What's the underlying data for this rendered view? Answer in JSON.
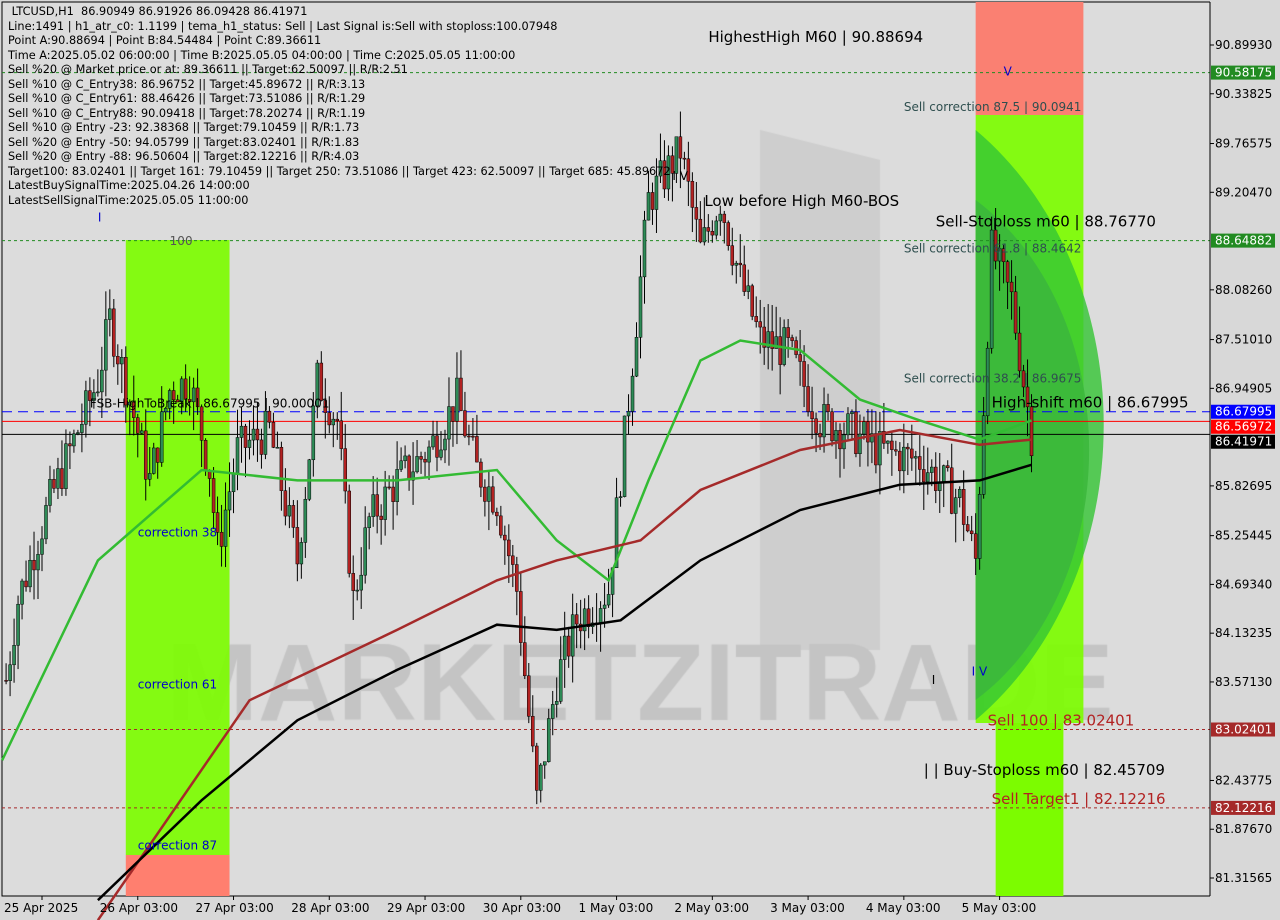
{
  "header": {
    "lines": [
      " LTCUSD,H1  86.90949 86.91926 86.09428 86.41971",
      "Line:1491 | h1_atr_c0: 1.1199 | tema_h1_status: Sell | Last Signal is:Sell with stoploss:100.07948",
      "Point A:90.88694 | Point B:84.54484 | Point C:89.36611",
      "Time A:2025.05.02 06:00:00 | Time B:2025.05.05 04:00:00 | Time C:2025.05.05 11:00:00",
      "Sell %20 @ Market price or at: 89.36611 || Target:62.50097 || R/R:2.51",
      "Sell %10 @ C_Entry38: 86.96752 || Target:45.89672 || R/R:3.13",
      "Sell %10 @ C_Entry61: 88.46426 || Target:73.51086 || R/R:1.29",
      "Sell %10 @ C_Entry88: 90.09418 || Target:78.20274 || R/R:1.19",
      "Sell %10 @ Entry -23: 92.38368 || Target:79.10459 || R/R:1.73",
      "Sell %20 @ Entry -50: 94.05799 || Target:83.02401 || R/R:1.83",
      "Sell %20 @ Entry -88: 96.50604 || Target:82.12216 || R/R:4.03",
      "Target100: 83.02401 || Target 161: 79.10459 || Target 250: 73.51086 || Target 423: 62.50097 || Target 685: 45.89672",
      "LatestBuySignalTime:2025.04.26 14:00:00",
      "LatestSellSignalTime:2025.05.05 11:00:00"
    ]
  },
  "chart_data": {
    "type": "candlestick",
    "symbol": "LTCUSD",
    "timeframe": "H1",
    "ylim": [
      81.31565,
      90.8993
    ],
    "yticks": [
      "90.89930",
      "90.33825",
      "89.76575",
      "89.20470",
      "88.08260",
      "87.51010",
      "86.94905",
      "85.82695",
      "85.25445",
      "84.69340",
      "84.13235",
      "83.57130",
      "82.43775",
      "81.87670",
      "81.31565"
    ],
    "xticks": [
      {
        "t": "2025-04-25 03:00",
        "label": "25 Apr 2025"
      },
      {
        "t": "2025-04-26 03:00",
        "label": "26 Apr 03:00"
      },
      {
        "t": "2025-04-27 03:00",
        "label": "27 Apr 03:00"
      },
      {
        "t": "2025-04-28 03:00",
        "label": "28 Apr 03:00"
      },
      {
        "t": "2025-04-29 03:00",
        "label": "29 Apr 03:00"
      },
      {
        "t": "2025-04-30 03:00",
        "label": "30 Apr 03:00"
      },
      {
        "t": "2025-05-01 03:00",
        "label": "1 May 03:00"
      },
      {
        "t": "2025-05-02 03:00",
        "label": "2 May 03:00"
      },
      {
        "t": "2025-05-03 03:00",
        "label": "3 May 03:00"
      },
      {
        "t": "2025-05-04 03:00",
        "label": "4 May 03:00"
      },
      {
        "t": "2025-05-05 03:00",
        "label": "5 May 03:00"
      }
    ],
    "close_path": [
      [
        "2025-04-24 18:00",
        83.59
      ],
      [
        "2025-04-24 21:00",
        84.51
      ],
      [
        "2025-04-25 05:00",
        85.66
      ],
      [
        "2025-04-25 17:00",
        87.04
      ],
      [
        "2025-04-25 20:00",
        87.74
      ],
      [
        "2025-04-26 01:00",
        86.82
      ],
      [
        "2025-04-26 06:00",
        85.89
      ],
      [
        "2025-04-26 11:00",
        86.93
      ],
      [
        "2025-04-26 16:00",
        87.04
      ],
      [
        "2025-04-26 21:00",
        86.01
      ],
      [
        "2025-04-26 23:00",
        85.09
      ],
      [
        "2025-04-27 04:00",
        86.24
      ],
      [
        "2025-04-27 12:00",
        86.47
      ],
      [
        "2025-04-27 19:00",
        84.97
      ],
      [
        "2025-04-28 00:00",
        87.04
      ],
      [
        "2025-04-28 05:00",
        86.58
      ],
      [
        "2025-04-28 09:00",
        84.51
      ],
      [
        "2025-04-28 13:00",
        85.43
      ],
      [
        "2025-04-28 20:00",
        85.89
      ],
      [
        "2025-04-29 04:00",
        86.24
      ],
      [
        "2025-04-29 11:00",
        86.82
      ],
      [
        "2025-04-29 16:00",
        86.01
      ],
      [
        "2025-04-29 21:00",
        85.66
      ],
      [
        "2025-04-30 02:00",
        84.63
      ],
      [
        "2025-04-30 07:00",
        82.21
      ],
      [
        "2025-04-30 12:00",
        83.59
      ],
      [
        "2025-04-30 17:00",
        84.28
      ],
      [
        "2025-05-01 01:00",
        84.63
      ],
      [
        "2025-05-01 06:00",
        86.82
      ],
      [
        "2025-05-01 11:00",
        89.12
      ],
      [
        "2025-05-01 19:00",
        89.69
      ],
      [
        "2025-05-02 00:00",
        88.54
      ],
      [
        "2025-05-02 05:00",
        89.12
      ],
      [
        "2025-05-02 10:00",
        88.2
      ],
      [
        "2025-05-02 15:00",
        87.51
      ],
      [
        "2025-05-02 22:00",
        87.39
      ],
      [
        "2025-05-03 06:00",
        86.58
      ],
      [
        "2025-05-03 13:00",
        86.47
      ],
      [
        "2025-05-03 21:00",
        86.24
      ],
      [
        "2025-05-04 07:00",
        86.12
      ],
      [
        "2025-05-04 17:00",
        85.66
      ],
      [
        "2025-05-04 21:00",
        84.97
      ],
      [
        "2025-05-05 01:00",
        88.54
      ],
      [
        "2025-05-05 06:00",
        87.97
      ],
      [
        "2025-05-05 11:00",
        86.41971
      ]
    ],
    "moving_averages": [
      {
        "color": "#33bb33",
        "points": [
          [
            "2025-04-24 17:00",
            82.67
          ],
          [
            "2025-04-25 17:00",
            84.97
          ],
          [
            "2025-04-26 19:00",
            86.01
          ],
          [
            "2025-04-27 19:00",
            85.89
          ],
          [
            "2025-04-28 20:00",
            85.89
          ],
          [
            "2025-04-29 21:00",
            86.01
          ],
          [
            "2025-04-30 12:00",
            85.2
          ],
          [
            "2025-05-01 01:00",
            84.74
          ],
          [
            "2025-05-01 11:00",
            85.89
          ],
          [
            "2025-05-02 00:00",
            87.27
          ],
          [
            "2025-05-02 10:00",
            87.5
          ],
          [
            "2025-05-03 01:00",
            87.39
          ],
          [
            "2025-05-03 16:00",
            86.82
          ],
          [
            "2025-05-04 07:00",
            86.58
          ],
          [
            "2025-05-04 22:00",
            86.36
          ],
          [
            "2025-05-05 11:00",
            86.58
          ]
        ]
      },
      {
        "color": "#a52a2a",
        "points": [
          [
            "2025-04-25 17:00",
            80.83
          ],
          [
            "2025-04-27 07:00",
            83.36
          ],
          [
            "2025-04-28 20:00",
            84.17
          ],
          [
            "2025-04-29 21:00",
            84.74
          ],
          [
            "2025-04-30 12:00",
            84.97
          ],
          [
            "2025-05-01 09:00",
            85.2
          ],
          [
            "2025-05-02 00:00",
            85.78
          ],
          [
            "2025-05-03 01:00",
            86.24
          ],
          [
            "2025-05-04 02:00",
            86.47
          ],
          [
            "2025-05-04 22:00",
            86.3
          ],
          [
            "2025-05-05 11:00",
            86.36
          ]
        ]
      },
      {
        "color": "#000000",
        "points": [
          [
            "2025-04-25 17:00",
            81.06
          ],
          [
            "2025-04-26 19:00",
            82.21
          ],
          [
            "2025-04-27 19:00",
            83.13
          ],
          [
            "2025-04-28 20:00",
            83.71
          ],
          [
            "2025-04-29 21:00",
            84.23
          ],
          [
            "2025-04-30 12:00",
            84.17
          ],
          [
            "2025-05-01 04:00",
            84.28
          ],
          [
            "2025-05-02 00:00",
            84.97
          ],
          [
            "2025-05-03 01:00",
            85.55
          ],
          [
            "2025-05-04 02:00",
            85.84
          ],
          [
            "2025-05-04 22:00",
            85.89
          ],
          [
            "2025-05-05 11:00",
            86.07
          ]
        ]
      }
    ],
    "levels": [
      {
        "price": 90.58175,
        "label": "90.58175",
        "color": "#228b22",
        "style": "dotted"
      },
      {
        "price": 88.64882,
        "label": "88.64882",
        "color": "#228b22",
        "style": "dotted"
      },
      {
        "price": 86.67995,
        "label": "86.67995",
        "color": "#0000ff",
        "style": "dashed"
      },
      {
        "price": 86.56972,
        "label": "86.56972",
        "color": "#ff0000",
        "style": "solid"
      },
      {
        "price": 86.41971,
        "label": "86.41971",
        "color": "#000000",
        "style": "solid"
      },
      {
        "price": 83.02401,
        "label": "83.02401",
        "color": "#a52a2a",
        "style": "dotted"
      },
      {
        "price": 82.12216,
        "label": "82.12216",
        "color": "#a52a2a",
        "style": "dotted"
      }
    ],
    "annotations": [
      {
        "text": "HighestHigh   M60 | 90.88694",
        "price": 90.88694,
        "t": "2025-05-02 02:00",
        "color": "#000000"
      },
      {
        "text": "Low before High   M60-BOS",
        "price": 89.0,
        "t": "2025-05-02 01:00",
        "color": "#000000"
      },
      {
        "text": "Sell-Stoploss m60 | 88.76770",
        "price": 88.7677,
        "t": "2025-05-04 11:00",
        "color": "#000000"
      },
      {
        "text": "High-shift m60 | 86.67995",
        "price": 86.67995,
        "t": "2025-05-05 01:00",
        "color": "#000000"
      },
      {
        "text": "Sell correction 87.5 | 90.0941",
        "price": 90.0941,
        "t": "2025-05-04 03:00",
        "color": "#2f4f4f"
      },
      {
        "text": "Sell correction 61.8 | 88.4642",
        "price": 88.4642,
        "t": "2025-05-04 03:00",
        "color": "#2f4f4f"
      },
      {
        "text": "Sell correction 38.2 | 86.9675",
        "price": 86.9675,
        "t": "2025-05-04 03:00",
        "color": "#2f4f4f"
      },
      {
        "text": "Sell 100 | 83.02401",
        "price": 83.02401,
        "t": "2025-05-05 00:00",
        "color": "#b22222"
      },
      {
        "text": "| | Buy-Stoploss m60 | 82.45709",
        "price": 82.45709,
        "t": "2025-05-04 08:00",
        "color": "#000000"
      },
      {
        "text": "Sell Target1 | 82.12216",
        "price": 82.12216,
        "t": "2025-05-05 01:00",
        "color": "#b22222"
      },
      {
        "text": "FSB-HighToBreak | 86.67995 | 90.00001",
        "price": 86.67995,
        "t": "2025-04-25 15:00",
        "color": "#000000"
      },
      {
        "text": "correction 38",
        "price": 85.2,
        "t": "2025-04-26 03:00",
        "color": "#0000cc"
      },
      {
        "text": "correction 61",
        "price": 83.45,
        "t": "2025-04-26 03:00",
        "color": "#0000cc"
      },
      {
        "text": "correction 87",
        "price": 81.6,
        "t": "2025-04-26 03:00",
        "color": "#0000cc"
      },
      {
        "text": "100",
        "price": 88.55,
        "t": "2025-04-26 11:00",
        "color": "#555555"
      },
      {
        "text": "I V",
        "price": 89.3,
        "t": "2025-05-01 17:00",
        "color": "#000000"
      },
      {
        "text": "I",
        "price": 89.1,
        "t": "2025-04-25 17:00",
        "color": "#0000cc"
      },
      {
        "text": "V",
        "price": 90.5,
        "t": "2025-05-05 04:00",
        "color": "#0000cc"
      },
      {
        "text": "I V",
        "price": 83.6,
        "t": "2025-05-04 20:00",
        "color": "#0000cc"
      },
      {
        "text": "I",
        "price": 83.5,
        "t": "2025-05-04 10:00",
        "color": "#000000"
      }
    ],
    "zones": [
      {
        "from": "2025-04-26 00:00",
        "to": "2025-04-27 02:00",
        "color": "#7cfc00"
      },
      {
        "from": "2025-05-04 21:00",
        "to": "2025-05-06 00:00",
        "color": "#7cfc00"
      }
    ],
    "watermark": "MARKETZITRADE",
    "colors": {
      "bull": "#2e8b57",
      "bear": "#b22222",
      "background": "#d8d8d8"
    }
  }
}
